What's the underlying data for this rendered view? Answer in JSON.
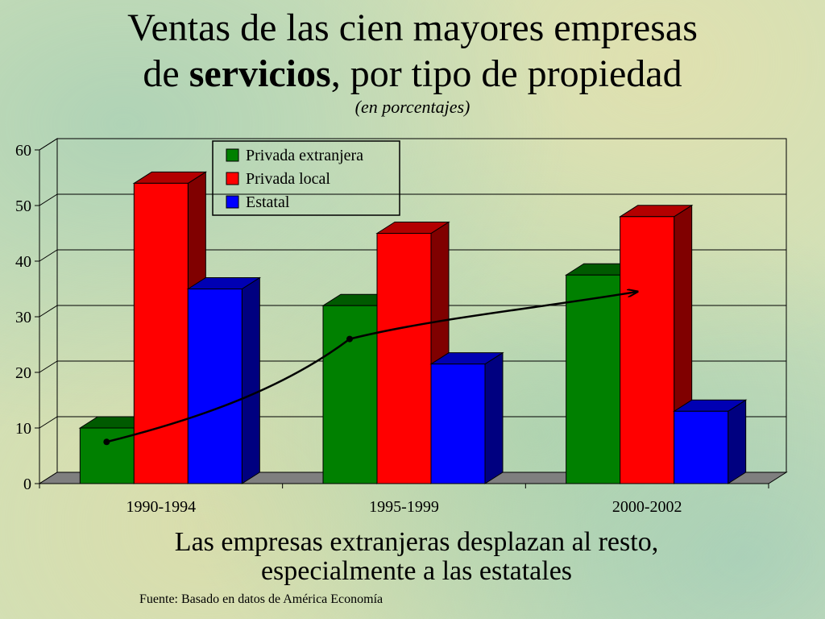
{
  "title": {
    "line1": "Ventas de las cien mayores empresas",
    "line2_pre": "de ",
    "line2_bold": "servicios",
    "line2_post": ", por tipo de propiedad",
    "subtitle": "(en porcentajes)"
  },
  "chart_data": {
    "type": "bar",
    "categories": [
      "1990-1994",
      "1995-1999",
      "2000-2002"
    ],
    "series": [
      {
        "name": "Privada extranjera",
        "values": [
          10,
          32,
          37.5
        ],
        "color": "#008000"
      },
      {
        "name": "Privada local",
        "values": [
          54,
          45,
          48
        ],
        "color": "#ff0000"
      },
      {
        "name": "Estatal",
        "values": [
          35,
          21.5,
          13
        ],
        "color": "#0000ff"
      }
    ],
    "ylim": [
      0,
      60
    ],
    "yticks": [
      "0",
      "10",
      "20",
      "30",
      "40",
      "50",
      "60"
    ],
    "grid": true,
    "legend": "top-center",
    "trend_line": {
      "values": [
        7.5,
        26,
        34.5
      ],
      "arrow": true
    }
  },
  "caption": {
    "line1": "Las empresas extranjeras desplazan al resto,",
    "line2": "especialmente a las estatales"
  },
  "source": "Fuente: Basado en datos de América Economía"
}
